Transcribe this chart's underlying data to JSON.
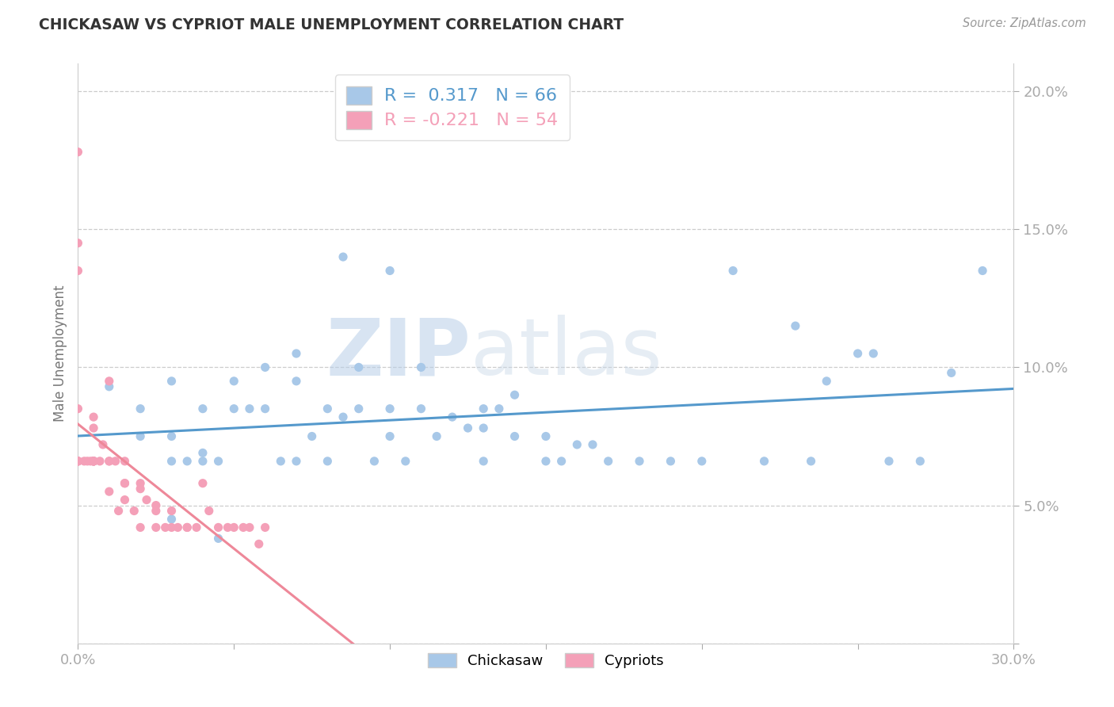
{
  "title": "CHICKASAW VS CYPRIOT MALE UNEMPLOYMENT CORRELATION CHART",
  "source": "Source: ZipAtlas.com",
  "ylabel": "Male Unemployment",
  "xlim": [
    0.0,
    0.3
  ],
  "ylim": [
    0.0,
    0.21
  ],
  "chickasaw_R": 0.317,
  "chickasaw_N": 66,
  "cypriot_R": -0.221,
  "cypriot_N": 54,
  "chickasaw_color": "#a8c8e8",
  "cypriot_color": "#f4a0b8",
  "chickasaw_line_color": "#5599cc",
  "cypriot_line_color": "#ee8899",
  "label_color": "#5599cc",
  "chickasaw_x": [
    0.005,
    0.01,
    0.02,
    0.02,
    0.03,
    0.03,
    0.03,
    0.035,
    0.04,
    0.04,
    0.04,
    0.045,
    0.05,
    0.05,
    0.055,
    0.06,
    0.06,
    0.065,
    0.07,
    0.07,
    0.075,
    0.08,
    0.08,
    0.085,
    0.09,
    0.09,
    0.095,
    0.1,
    0.1,
    0.105,
    0.11,
    0.11,
    0.115,
    0.12,
    0.125,
    0.13,
    0.13,
    0.135,
    0.14,
    0.14,
    0.15,
    0.15,
    0.155,
    0.16,
    0.165,
    0.17,
    0.18,
    0.19,
    0.2,
    0.21,
    0.22,
    0.23,
    0.235,
    0.24,
    0.25,
    0.255,
    0.26,
    0.27,
    0.28,
    0.29,
    0.1,
    0.13,
    0.03,
    0.045,
    0.07,
    0.085
  ],
  "chickasaw_y": [
    0.066,
    0.093,
    0.075,
    0.085,
    0.095,
    0.075,
    0.066,
    0.066,
    0.085,
    0.066,
    0.069,
    0.066,
    0.095,
    0.085,
    0.085,
    0.1,
    0.085,
    0.066,
    0.066,
    0.095,
    0.075,
    0.066,
    0.085,
    0.082,
    0.1,
    0.085,
    0.066,
    0.085,
    0.075,
    0.066,
    0.085,
    0.1,
    0.075,
    0.082,
    0.078,
    0.078,
    0.085,
    0.085,
    0.09,
    0.075,
    0.075,
    0.066,
    0.066,
    0.072,
    0.072,
    0.066,
    0.066,
    0.066,
    0.066,
    0.135,
    0.066,
    0.115,
    0.066,
    0.095,
    0.105,
    0.105,
    0.066,
    0.066,
    0.098,
    0.135,
    0.135,
    0.066,
    0.045,
    0.038,
    0.105,
    0.14
  ],
  "cypriot_x": [
    0.0,
    0.0,
    0.0,
    0.0,
    0.002,
    0.003,
    0.004,
    0.005,
    0.005,
    0.005,
    0.005,
    0.005,
    0.007,
    0.008,
    0.01,
    0.01,
    0.01,
    0.012,
    0.013,
    0.015,
    0.015,
    0.015,
    0.018,
    0.02,
    0.02,
    0.022,
    0.025,
    0.025,
    0.028,
    0.03,
    0.032,
    0.035,
    0.035,
    0.038,
    0.04,
    0.042,
    0.045,
    0.048,
    0.05,
    0.053,
    0.055,
    0.058,
    0.06,
    0.0,
    0.0,
    0.0,
    0.0,
    0.005,
    0.005,
    0.01,
    0.015,
    0.02,
    0.025,
    0.03
  ],
  "cypriot_y": [
    0.066,
    0.066,
    0.066,
    0.066,
    0.066,
    0.066,
    0.066,
    0.066,
    0.066,
    0.066,
    0.066,
    0.066,
    0.066,
    0.072,
    0.066,
    0.066,
    0.055,
    0.066,
    0.048,
    0.058,
    0.052,
    0.058,
    0.048,
    0.058,
    0.042,
    0.052,
    0.048,
    0.042,
    0.042,
    0.048,
    0.042,
    0.042,
    0.042,
    0.042,
    0.058,
    0.048,
    0.042,
    0.042,
    0.042,
    0.042,
    0.042,
    0.036,
    0.042,
    0.178,
    0.145,
    0.135,
    0.085,
    0.082,
    0.078,
    0.095,
    0.066,
    0.056,
    0.05,
    0.042
  ]
}
